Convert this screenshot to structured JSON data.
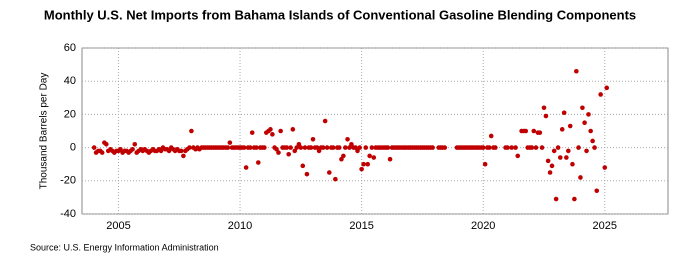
{
  "chart_data": {
    "type": "scatter",
    "title": "Monthly U.S. Net Imports from Bahama Islands of Conventional Gasoline Blending Components",
    "y_label": "Thousand Barrels per Day",
    "source": "Source: U.S. Energy Information Administration",
    "color": "#c00000",
    "grid": true,
    "xlim": [
      2003.5,
      2027.6
    ],
    "ylim": [
      -40,
      60
    ],
    "xticks": [
      2005,
      2010,
      2015,
      2020,
      2025
    ],
    "yticks": [
      -40,
      -20,
      0,
      20,
      40,
      60
    ],
    "x": [
      2004.0,
      2004.08,
      2004.17,
      2004.25,
      2004.33,
      2004.42,
      2004.5,
      2004.58,
      2004.67,
      2004.75,
      2004.83,
      2004.92,
      2005.0,
      2005.08,
      2005.17,
      2005.25,
      2005.33,
      2005.42,
      2005.5,
      2005.58,
      2005.67,
      2005.75,
      2005.83,
      2005.92,
      2006.0,
      2006.08,
      2006.17,
      2006.25,
      2006.33,
      2006.42,
      2006.5,
      2006.58,
      2006.67,
      2006.75,
      2006.83,
      2006.92,
      2007.0,
      2007.08,
      2007.17,
      2007.25,
      2007.33,
      2007.42,
      2007.5,
      2007.58,
      2007.67,
      2007.75,
      2007.83,
      2007.92,
      2008.0,
      2008.08,
      2008.17,
      2008.25,
      2008.33,
      2008.42,
      2008.5,
      2008.58,
      2008.67,
      2008.75,
      2008.83,
      2008.92,
      2009.0,
      2009.08,
      2009.17,
      2009.25,
      2009.33,
      2009.42,
      2009.5,
      2009.58,
      2009.67,
      2009.75,
      2009.83,
      2009.92,
      2010.0,
      2010.08,
      2010.17,
      2010.25,
      2010.33,
      2010.42,
      2010.5,
      2010.58,
      2010.67,
      2010.75,
      2010.83,
      2010.92,
      2011.0,
      2011.08,
      2011.17,
      2011.25,
      2011.33,
      2011.42,
      2011.5,
      2011.58,
      2011.67,
      2011.75,
      2011.83,
      2011.92,
      2012.0,
      2012.08,
      2012.17,
      2012.25,
      2012.33,
      2012.42,
      2012.5,
      2012.58,
      2012.67,
      2012.75,
      2012.83,
      2012.92,
      2013.0,
      2013.08,
      2013.17,
      2013.25,
      2013.33,
      2013.42,
      2013.5,
      2013.58,
      2013.67,
      2013.75,
      2013.83,
      2013.92,
      2014.0,
      2014.08,
      2014.17,
      2014.25,
      2014.33,
      2014.42,
      2014.5,
      2014.58,
      2014.67,
      2014.75,
      2014.83,
      2014.92,
      2015.0,
      2015.08,
      2015.17,
      2015.25,
      2015.33,
      2015.42,
      2015.5,
      2015.58,
      2015.67,
      2015.75,
      2015.83,
      2015.92,
      2016.0,
      2016.08,
      2016.17,
      2016.25,
      2016.33,
      2016.42,
      2016.5,
      2016.58,
      2016.67,
      2016.75,
      2016.83,
      2016.92,
      2017.0,
      2017.08,
      2017.17,
      2017.25,
      2017.33,
      2017.42,
      2017.5,
      2017.58,
      2017.67,
      2017.75,
      2017.83,
      2017.92,
      2018.17,
      2018.25,
      2018.33,
      2018.42,
      2018.92,
      2019.0,
      2019.08,
      2019.17,
      2019.25,
      2019.33,
      2019.42,
      2019.5,
      2019.58,
      2019.67,
      2019.75,
      2019.83,
      2019.92,
      2020.0,
      2020.08,
      2020.17,
      2020.25,
      2020.33,
      2020.42,
      2020.5,
      2020.92,
      2021.0,
      2021.17,
      2021.33,
      2021.42,
      2021.58,
      2021.67,
      2021.75,
      2021.83,
      2021.92,
      2022.0,
      2022.08,
      2022.17,
      2022.25,
      2022.33,
      2022.42,
      2022.5,
      2022.58,
      2022.67,
      2022.75,
      2022.83,
      2022.92,
      2023.0,
      2023.08,
      2023.17,
      2023.25,
      2023.33,
      2023.42,
      2023.5,
      2023.58,
      2023.67,
      2023.75,
      2023.83,
      2023.92,
      2024.0,
      2024.08,
      2024.17,
      2024.25,
      2024.33,
      2024.42,
      2024.5,
      2024.58,
      2024.67,
      2024.83,
      2025.0,
      2025.08
    ],
    "values": [
      0,
      -3,
      -2,
      -2,
      -3,
      3,
      2,
      -2,
      -1,
      -2,
      -3,
      -2,
      -2,
      -1,
      -3,
      -2,
      -2,
      -3,
      -2,
      -1,
      2,
      -3,
      -2,
      -1,
      -2,
      -1,
      -2,
      -3,
      -2,
      -1,
      -2,
      -2,
      -1,
      -2,
      0,
      -1,
      -1,
      -2,
      0,
      -1,
      -2,
      -1,
      -2,
      -2,
      -5,
      -2,
      -1,
      0,
      10,
      0,
      -1,
      0,
      -1,
      0,
      0,
      0,
      0,
      0,
      0,
      0,
      0,
      0,
      0,
      0,
      0,
      0,
      0,
      3,
      0,
      0,
      0,
      0,
      0,
      0,
      0,
      -12,
      0,
      0,
      9,
      0,
      0,
      -9,
      0,
      0,
      0,
      9,
      10,
      11,
      8,
      0,
      -1,
      -3,
      10,
      0,
      0,
      0,
      -4,
      0,
      11,
      -2,
      0,
      2,
      0,
      -11,
      0,
      -16,
      0,
      0,
      5,
      0,
      0,
      -2,
      0,
      0,
      16,
      0,
      -15,
      0,
      0,
      -19,
      0,
      0,
      -7,
      -5,
      0,
      5,
      0,
      2,
      0,
      0,
      -2,
      0,
      -13,
      -10,
      0,
      -10,
      -5,
      0,
      -6,
      0,
      0,
      0,
      0,
      0,
      0,
      0,
      -7,
      0,
      0,
      0,
      0,
      0,
      0,
      0,
      0,
      0,
      0,
      0,
      0,
      0,
      0,
      0,
      0,
      0,
      0,
      0,
      0,
      0,
      0,
      0,
      0,
      0,
      0,
      0,
      0,
      0,
      0,
      0,
      0,
      0,
      0,
      0,
      0,
      0,
      0,
      0,
      -10,
      0,
      0,
      7,
      0,
      0,
      0,
      0,
      0,
      0,
      -5,
      10,
      10,
      10,
      0,
      0,
      0,
      10,
      0,
      9,
      9,
      0,
      24,
      19,
      -8,
      -15,
      -11,
      -2,
      -31,
      0,
      -6,
      11,
      21,
      -6,
      -2,
      13,
      -10,
      -31,
      46,
      0,
      -18,
      24,
      15,
      -2,
      20,
      10,
      4,
      0,
      -26,
      32,
      -12,
      36
    ]
  }
}
